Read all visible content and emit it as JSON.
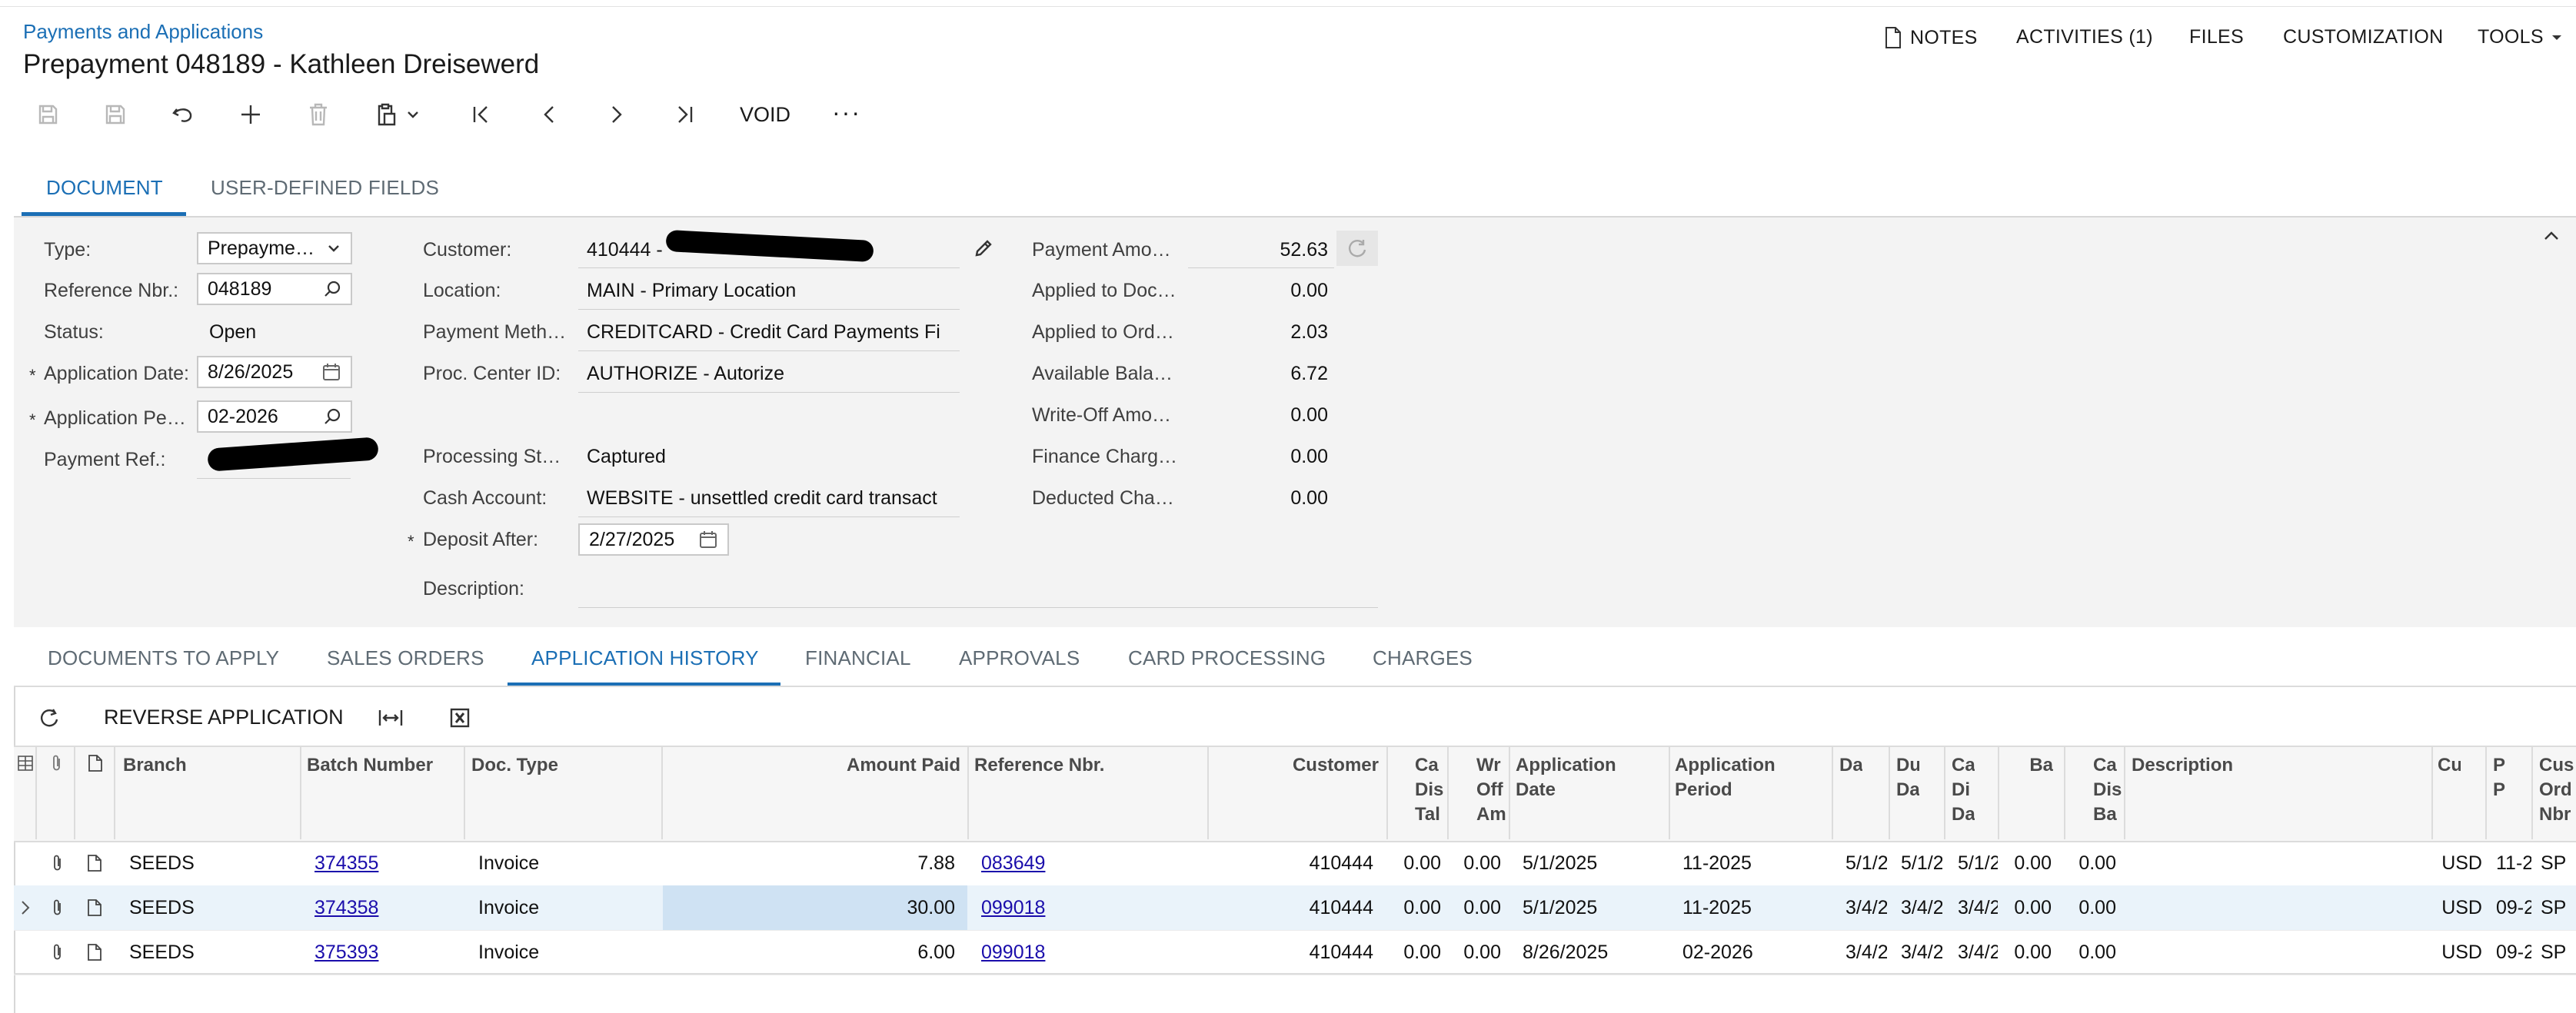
{
  "header": {
    "breadcrumb": "Payments and Applications",
    "title": "Prepayment 048189 - Kathleen Dreisewerd",
    "actions": [
      {
        "label": "NOTES",
        "icon": "document-icon"
      },
      {
        "label": "ACTIVITIES (1)"
      },
      {
        "label": "FILES"
      },
      {
        "label": "CUSTOMIZATION"
      },
      {
        "label": "TOOLS",
        "icon": "caret-down-icon"
      }
    ]
  },
  "toolbar": {
    "void_label": "VOID",
    "more_label": "···"
  },
  "top_tabs": [
    {
      "label": "DOCUMENT",
      "active": true
    },
    {
      "label": "USER-DEFINED FIELDS",
      "active": false
    }
  ],
  "form": {
    "type": {
      "label": "Type:",
      "value": "Prepayme…"
    },
    "reference_nbr": {
      "label": "Reference Nbr.:",
      "value": "048189"
    },
    "status": {
      "label": "Status:",
      "value": "Open"
    },
    "application_date": {
      "label": "Application Date:",
      "value": "8/26/2025"
    },
    "application_period": {
      "label": "Application Pe…",
      "value": "02-2026"
    },
    "payment_ref": {
      "label": "Payment Ref.:",
      "value": ""
    },
    "customer": {
      "label": "Customer:",
      "value": "410444 -"
    },
    "location": {
      "label": "Location:",
      "value": "MAIN - Primary Location"
    },
    "payment_method": {
      "label": "Payment Meth…",
      "value": "CREDITCARD - Credit Card Payments Fi"
    },
    "proc_center": {
      "label": "Proc. Center ID:",
      "value": "AUTHORIZE - Autorize"
    },
    "processing_status": {
      "label": "Processing St…",
      "value": "Captured"
    },
    "cash_account": {
      "label": "Cash Account:",
      "value": "WEBSITE - unsettled credit card transact"
    },
    "deposit_after": {
      "label": "Deposit After:",
      "value": "2/27/2025"
    },
    "description": {
      "label": "Description:",
      "value": ""
    },
    "amounts": [
      {
        "label": "Payment Amo…",
        "value": "52.63"
      },
      {
        "label": "Applied to Doc…",
        "value": "0.00"
      },
      {
        "label": "Applied to Ord…",
        "value": "2.03"
      },
      {
        "label": "Available Bala…",
        "value": "6.72"
      },
      {
        "label": "Write-Off Amo…",
        "value": "0.00"
      },
      {
        "label": "Finance Charg…",
        "value": "0.00"
      },
      {
        "label": "Deducted Cha…",
        "value": "0.00"
      }
    ]
  },
  "bottom_tabs": [
    {
      "label": "DOCUMENTS TO APPLY",
      "active": false
    },
    {
      "label": "SALES ORDERS",
      "active": false
    },
    {
      "label": "APPLICATION HISTORY",
      "active": true
    },
    {
      "label": "FINANCIAL",
      "active": false
    },
    {
      "label": "APPROVALS",
      "active": false
    },
    {
      "label": "CARD PROCESSING",
      "active": false
    },
    {
      "label": "CHARGES",
      "active": false
    }
  ],
  "grid": {
    "reverse_label": "REVERSE APPLICATION",
    "columns": [
      {
        "key": "branch",
        "label": "Branch"
      },
      {
        "key": "batch",
        "label": "Batch Number"
      },
      {
        "key": "doctype",
        "label": "Doc. Type"
      },
      {
        "key": "amount",
        "label": "Amount Paid"
      },
      {
        "key": "ref",
        "label": "Reference Nbr."
      },
      {
        "key": "customer",
        "label": "Customer"
      },
      {
        "key": "cadis",
        "label": "Ca\nDis\nTal"
      },
      {
        "key": "wroff",
        "label": "Wr\nOff\nAm"
      },
      {
        "key": "appdate",
        "label": "Application\nDate"
      },
      {
        "key": "appperiod",
        "label": "Application\nPeriod"
      },
      {
        "key": "da",
        "label": "Da"
      },
      {
        "key": "du",
        "label": "Du\nDa"
      },
      {
        "key": "cadi",
        "label": "Ca\nDi\nDa"
      },
      {
        "key": "ba",
        "label": "Ba"
      },
      {
        "key": "cadisba",
        "label": "Ca\nDis\nBa"
      },
      {
        "key": "desc",
        "label": "Description"
      },
      {
        "key": "cu",
        "label": "Cu"
      },
      {
        "key": "pp",
        "label": "P\nP"
      },
      {
        "key": "cus",
        "label": "Cus\nOrd\nNbr"
      }
    ],
    "rows": [
      {
        "branch": "SEEDS",
        "batch": "374355",
        "doctype": "Invoice",
        "amount": "7.88",
        "ref": "083649",
        "customer": "410444",
        "cadis": "0.00",
        "wroff": "0.00",
        "appdate": "5/1/2025",
        "appperiod": "11-2025",
        "da": "5/1/2",
        "du": "5/1/2",
        "cadi": "5/1/2",
        "ba": "0.00",
        "cadisba": "0.00",
        "desc": "",
        "cu": "USD",
        "pp": "11-2",
        "cus": "SP"
      },
      {
        "branch": "SEEDS",
        "batch": "374358",
        "doctype": "Invoice",
        "amount": "30.00",
        "ref": "099018",
        "customer": "410444",
        "cadis": "0.00",
        "wroff": "0.00",
        "appdate": "5/1/2025",
        "appperiod": "11-2025",
        "da": "3/4/2",
        "du": "3/4/2",
        "cadi": "3/4/2",
        "ba": "0.00",
        "cadisba": "0.00",
        "desc": "",
        "cu": "USD",
        "pp": "09-2",
        "cus": "SP"
      },
      {
        "branch": "SEEDS",
        "batch": "375393",
        "doctype": "Invoice",
        "amount": "6.00",
        "ref": "099018",
        "customer": "410444",
        "cadis": "0.00",
        "wroff": "0.00",
        "appdate": "8/26/2025",
        "appperiod": "02-2026",
        "da": "3/4/2",
        "du": "3/4/2",
        "cadi": "3/4/2",
        "ba": "0.00",
        "cadisba": "0.00",
        "desc": "",
        "cu": "USD",
        "pp": "09-2",
        "cus": "SP"
      }
    ]
  }
}
